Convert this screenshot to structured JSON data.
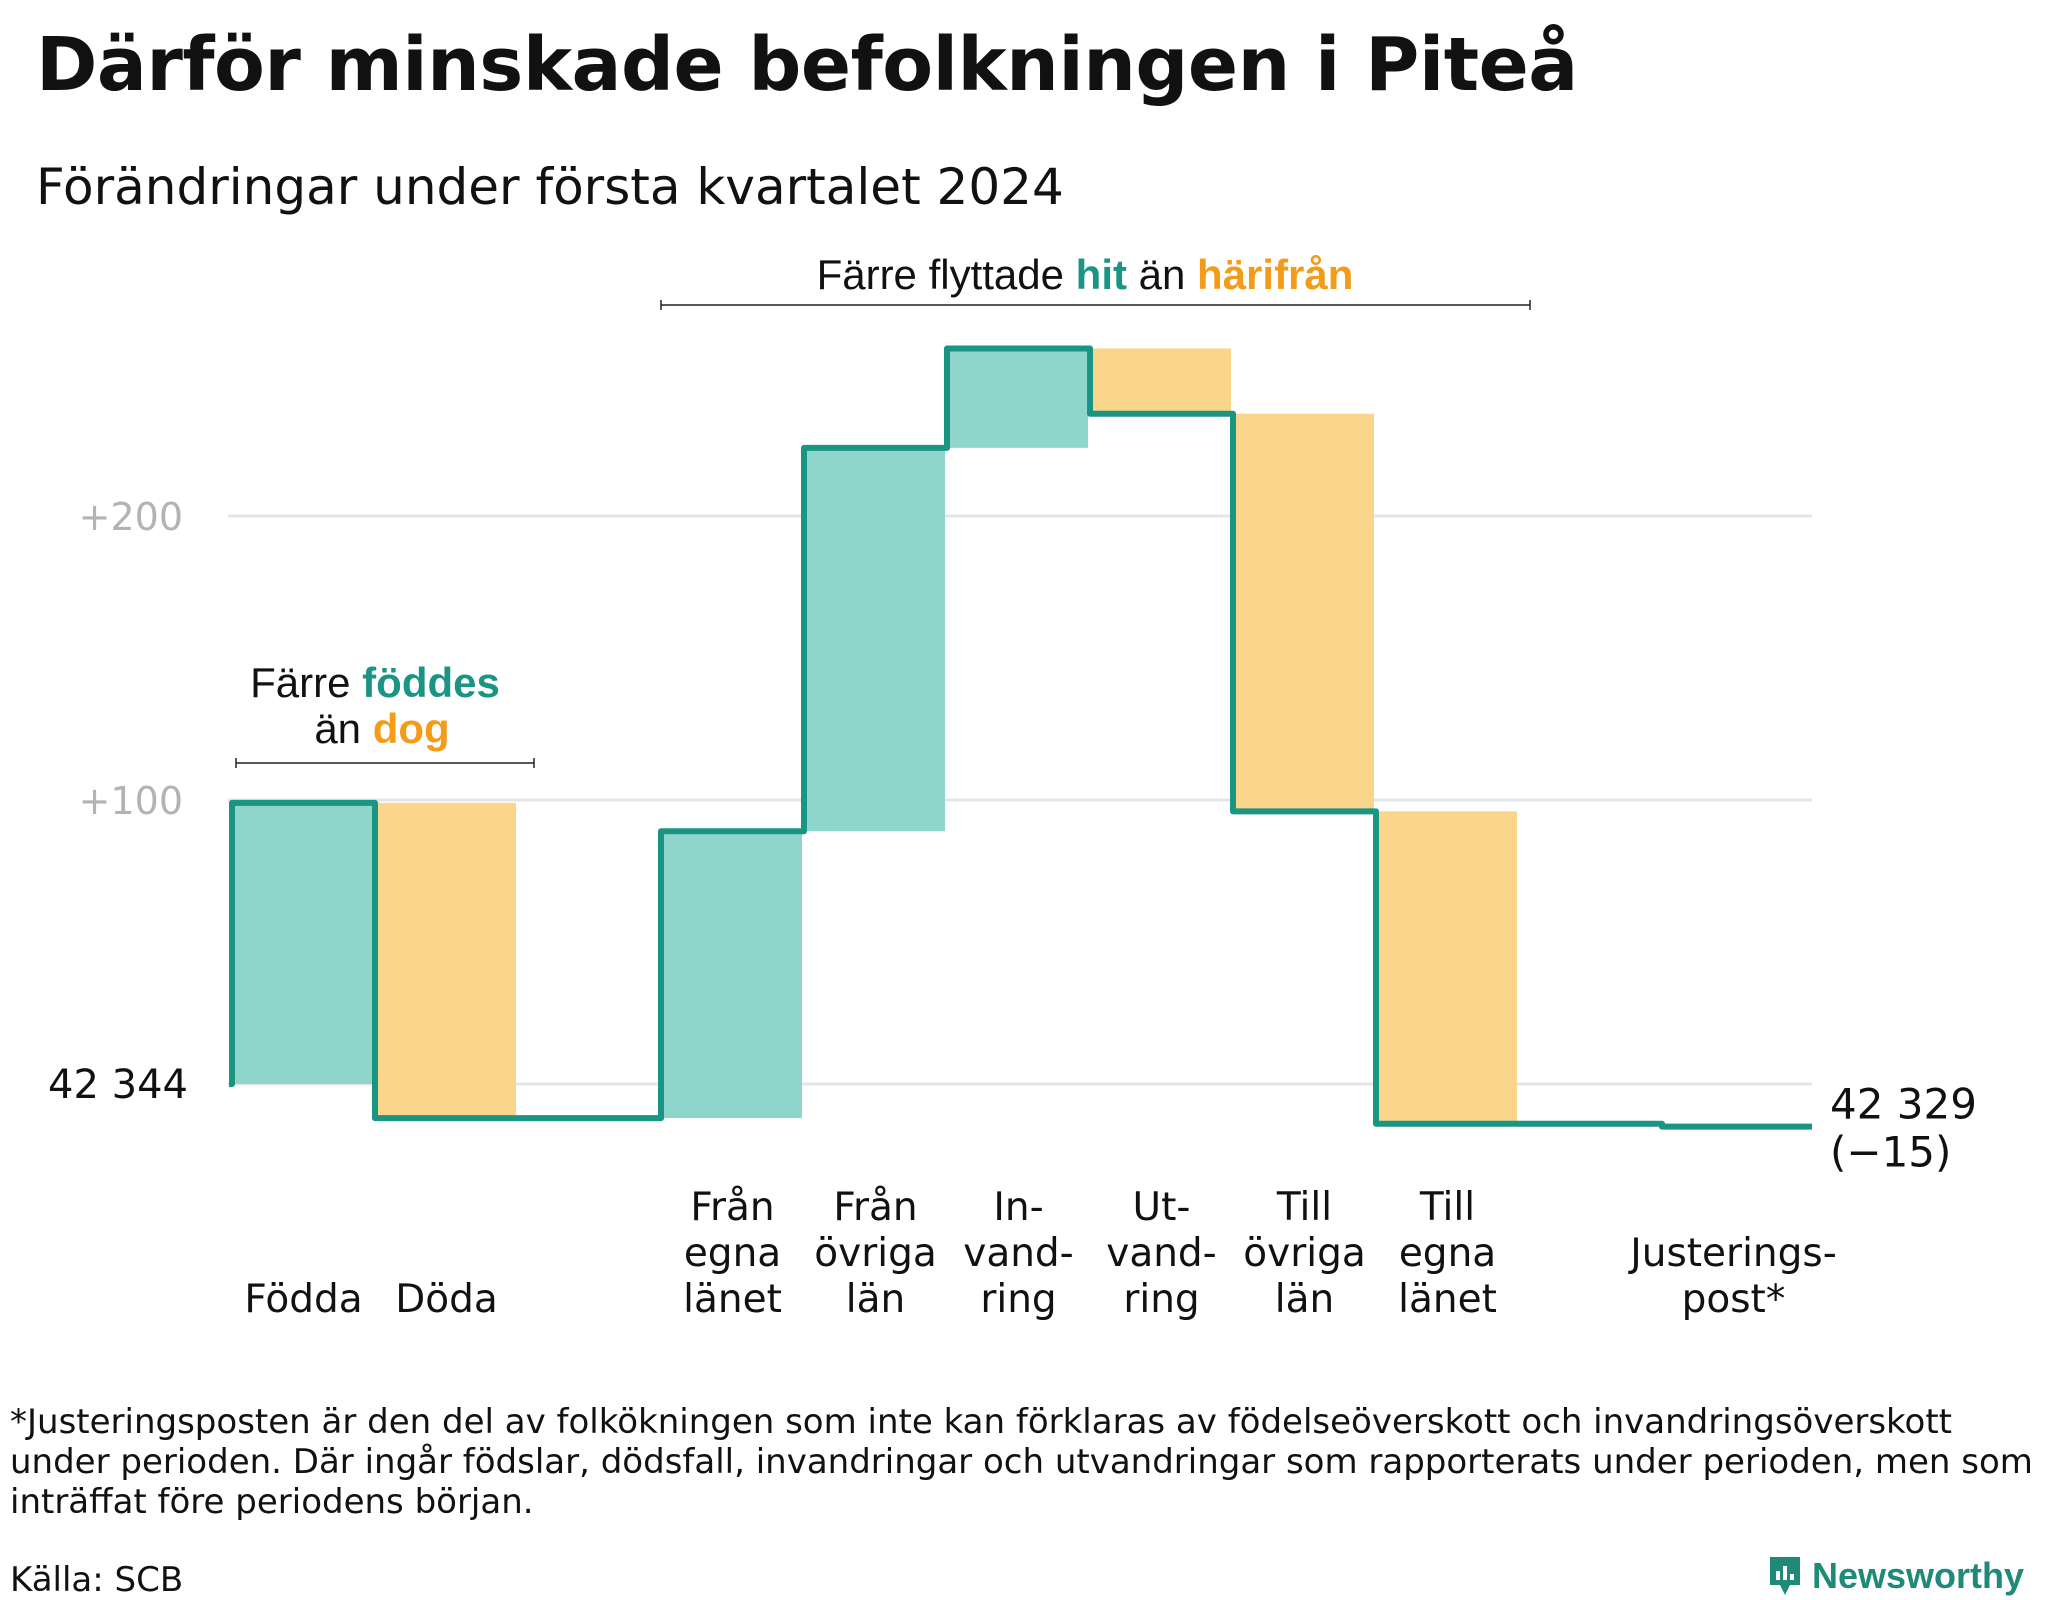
{
  "title": "Därför minskade befolkningen i Piteå",
  "subtitle": "Förändringar under första kvartalet 2024",
  "footnote": "*Justeringsposten är den del av folkökningen som inte kan förklaras av födelseöverskott och invandringsöverskott under perioden. Där ingår födslar, dödsfall, invandringar och utvandringar som rapporterats under perioden, men som inträffat före periodens början.",
  "source": "Källa: SCB",
  "brand": "Newsworthy",
  "colors": {
    "teal_line": "#1a9483",
    "increase": "#8ed5cc",
    "decrease": "#fad68c",
    "increase_text": "#1a9483",
    "decrease_text": "#f39c1a",
    "gridline": "#e3e5ea",
    "tick_label": "#b3b3b3"
  },
  "chart_data": {
    "type": "waterfall",
    "baseline_value": 42344,
    "baseline_label": "42  344",
    "end_label_line1": "42 329",
    "end_label_line2": "(−15)",
    "y_axis": {
      "ticks": [
        0,
        100,
        200
      ],
      "tick_labels": [
        "",
        "+100",
        "+200"
      ],
      "range": [
        -20,
        260
      ]
    },
    "grid": true,
    "steps": [
      {
        "label": [
          "Födda"
        ],
        "change": 99,
        "kind": "increase"
      },
      {
        "label": [
          "Döda"
        ],
        "change": -111,
        "kind": "decrease"
      },
      {
        "label": [
          ""
        ],
        "change": 0,
        "kind": "gap"
      },
      {
        "label": [
          "Från",
          "egna",
          "länet"
        ],
        "change": 101,
        "kind": "increase"
      },
      {
        "label": [
          "Från",
          "övriga",
          "län"
        ],
        "change": 135,
        "kind": "increase"
      },
      {
        "label": [
          "In-",
          "vand-",
          "ring"
        ],
        "change": 35,
        "kind": "increase"
      },
      {
        "label": [
          "Ut-",
          "vand-",
          "ring"
        ],
        "change": -23,
        "kind": "decrease"
      },
      {
        "label": [
          "Till",
          "övriga",
          "län"
        ],
        "change": -140,
        "kind": "decrease"
      },
      {
        "label": [
          "Till",
          "egna",
          "länet"
        ],
        "change": -110,
        "kind": "decrease"
      },
      {
        "label": [
          ""
        ],
        "change": 0,
        "kind": "gap"
      },
      {
        "label": [
          "Justerings-",
          "post*"
        ],
        "change": -1,
        "kind": "adjustment"
      }
    ],
    "annotations": {
      "births": {
        "prefix": "Färre",
        "highlight_up": "föddes",
        "middle": "än",
        "highlight_down": "dog"
      },
      "migration": {
        "prefix": "Färre flyttade",
        "highlight_up": "hit",
        "middle": "än",
        "highlight_down": "härifrån"
      }
    }
  }
}
